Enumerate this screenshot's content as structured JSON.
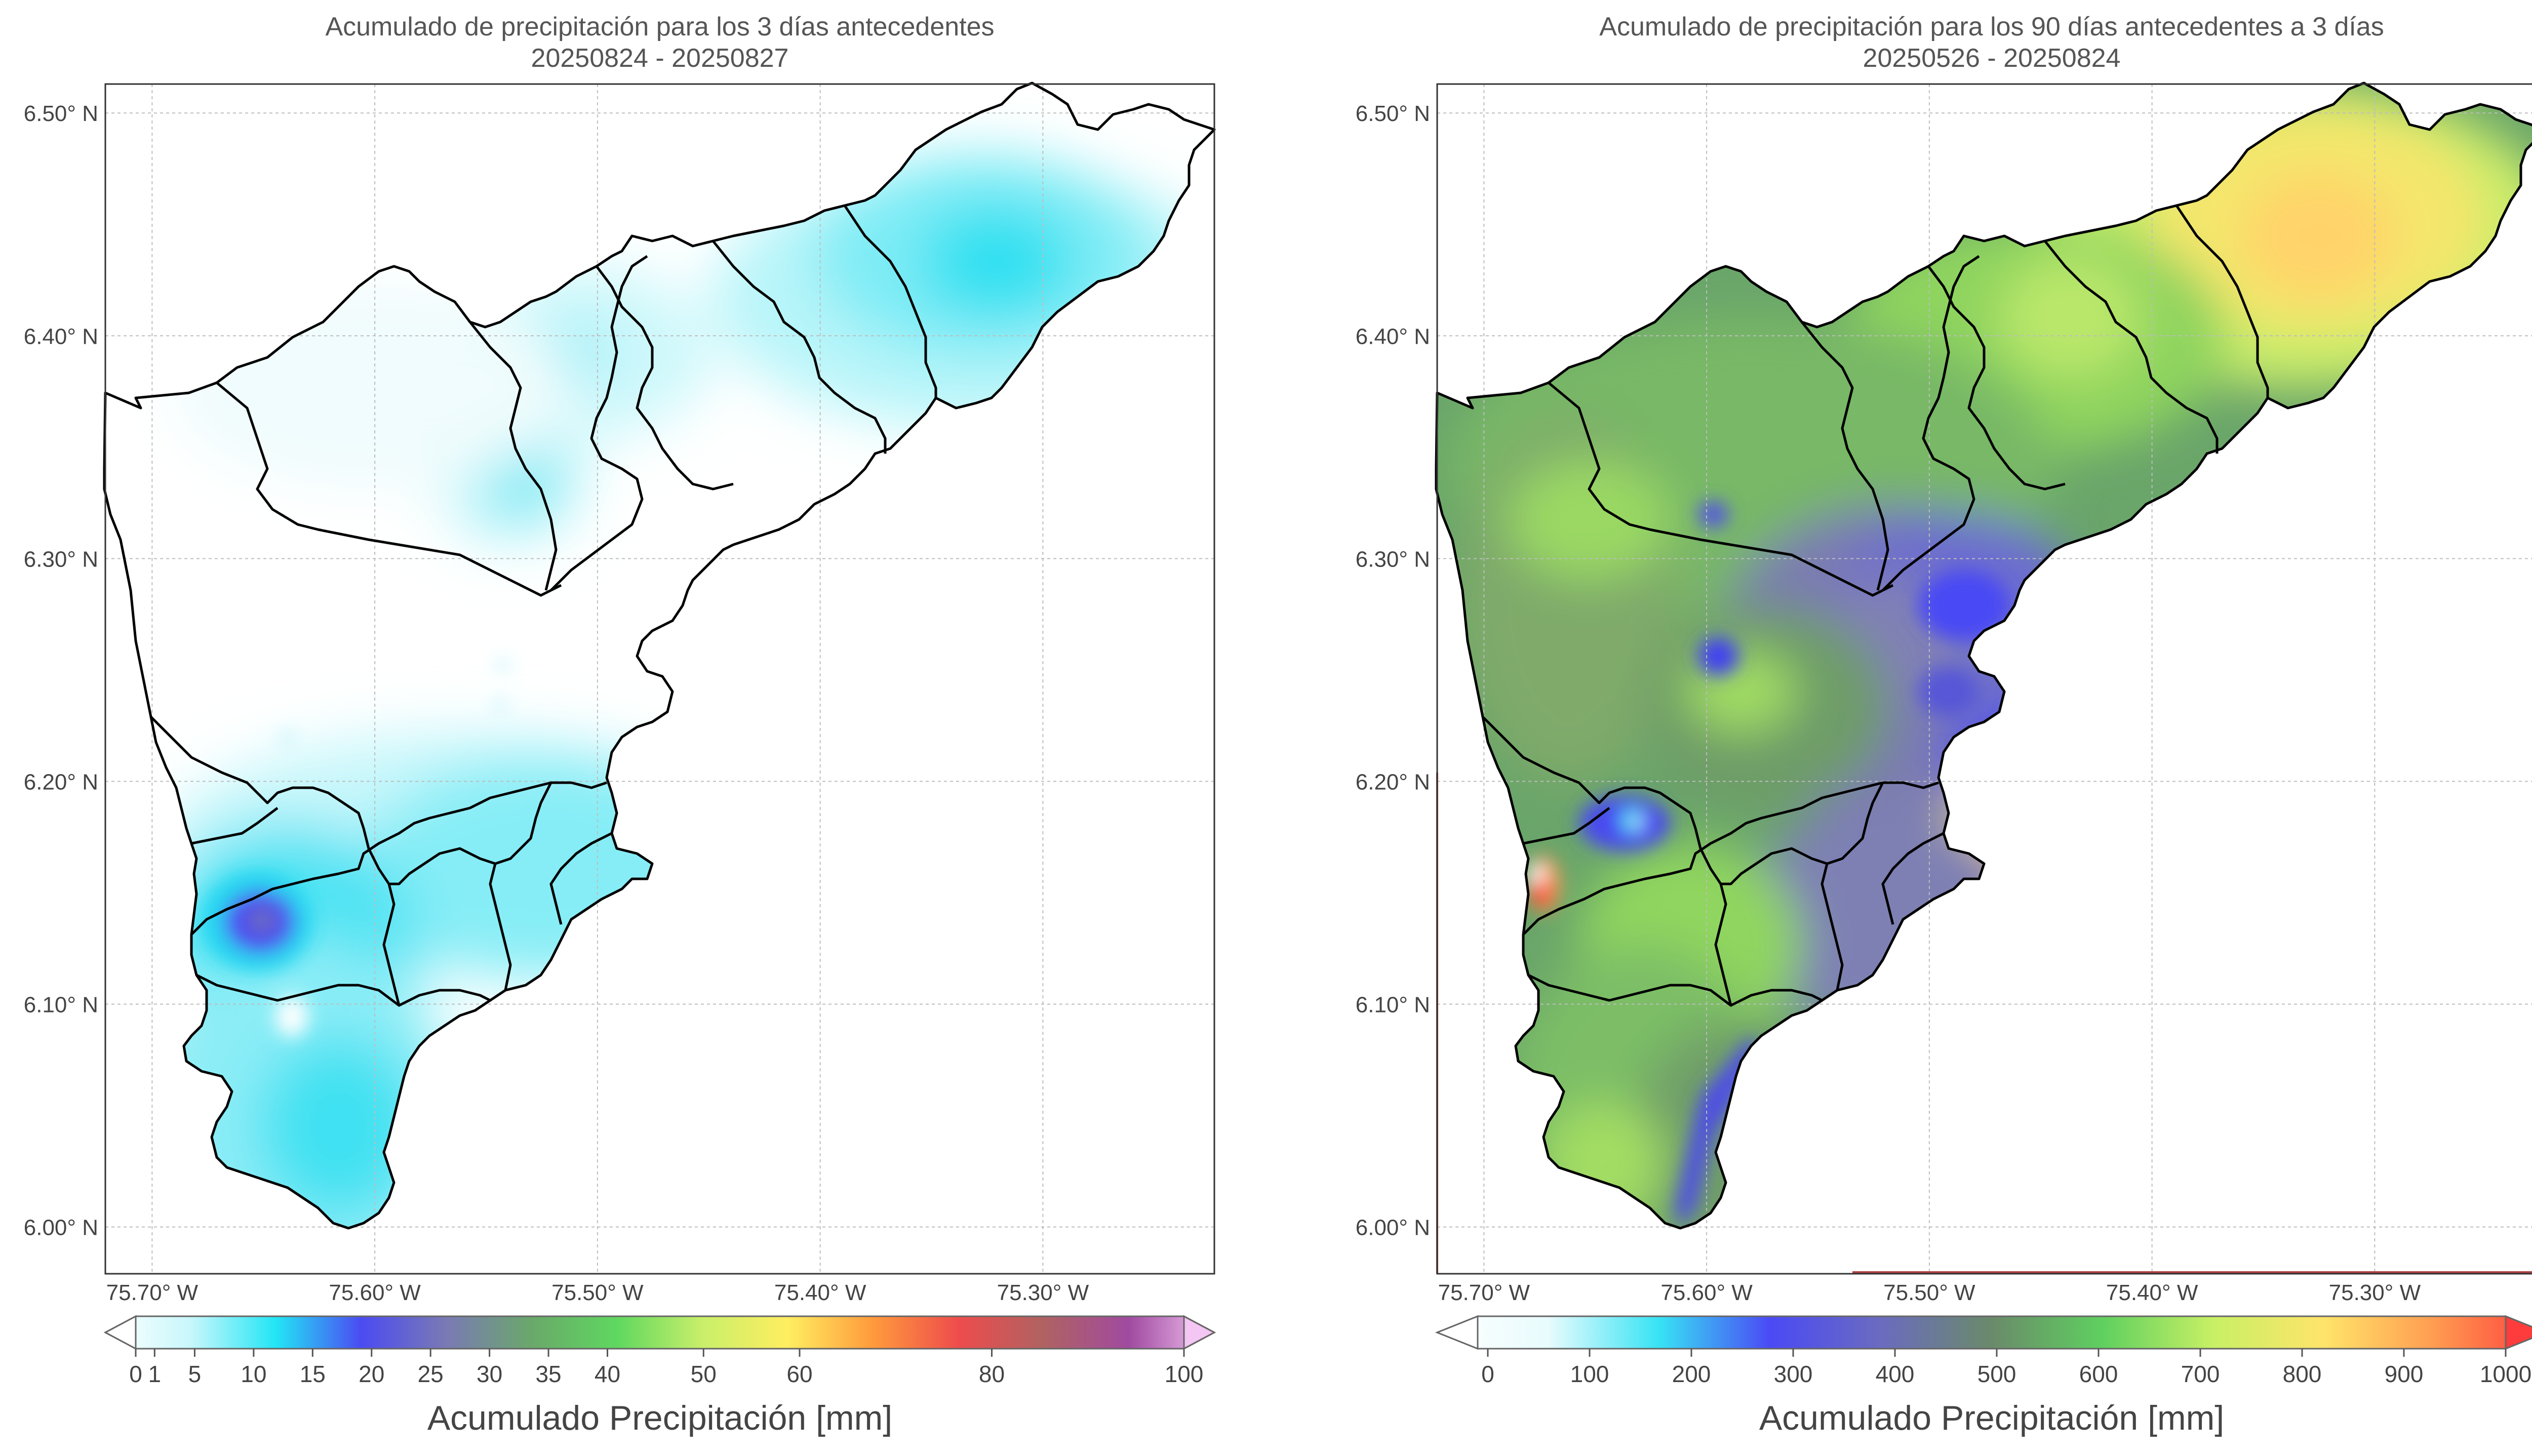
{
  "panels": [
    {
      "id": "left",
      "title_line1": "Acumulado de precipitación para los 3 días antecedentes",
      "title_line2": "20250824 - 20250827",
      "colorbar": {
        "label": "Acumulado Precipitación [mm]",
        "ticks": [
          "0",
          "1",
          "5",
          "10",
          "15",
          "20",
          "25",
          "30",
          "35",
          "40",
          "50",
          "60",
          "80",
          "100"
        ],
        "tick_values": [
          0,
          1,
          5,
          10,
          15,
          20,
          25,
          30,
          35,
          40,
          50,
          60,
          80,
          100
        ],
        "stops": [
          "#ffffff",
          "#c8f7fb",
          "#22e5f5",
          "#4b4bf2",
          "#7a7ab4",
          "#6aa86a",
          "#5fd85f",
          "#c9ef6a",
          "#ffee60",
          "#ff9a3c",
          "#ee4c4c",
          "#b06262",
          "#a04aa0",
          "#f3c6f3"
        ],
        "extend": "both"
      }
    },
    {
      "id": "right",
      "title_line1": "Acumulado de precipitación para los 90 días antecedentes a 3 días",
      "title_line2": "20250526 - 20250824",
      "colorbar": {
        "label": "Acumulado Precipitación [mm]",
        "ticks": [
          "0",
          "100",
          "200",
          "300",
          "400",
          "500",
          "600",
          "700",
          "800",
          "900",
          "1000"
        ],
        "tick_values": [
          0,
          100,
          200,
          300,
          400,
          500,
          600,
          700,
          800,
          900,
          1000
        ],
        "stops": [
          "#ffffff",
          "#e8fbfd",
          "#37e3f4",
          "#4a4af5",
          "#6b6bc0",
          "#6a8a6a",
          "#5fd05f",
          "#c8f065",
          "#ffe46a",
          "#ff9b50",
          "#ff3c3c"
        ],
        "extend": "max"
      }
    }
  ],
  "axes": {
    "xticks": [
      "75.70° W",
      "75.60° W",
      "75.50° W",
      "75.40° W",
      "75.30° W"
    ],
    "xtick_values": [
      -75.7,
      -75.6,
      -75.5,
      -75.4,
      -75.3
    ],
    "yticks": [
      "6.50° N",
      "6.40° N",
      "6.30° N",
      "6.20° N",
      "6.10° N",
      "6.00° N"
    ],
    "ytick_values": [
      6.5,
      6.4,
      6.3,
      6.2,
      6.1,
      6.0
    ],
    "lon_range": [
      -75.721,
      -75.223
    ],
    "lat_range": [
      5.979,
      6.513
    ],
    "grid": true
  }
}
